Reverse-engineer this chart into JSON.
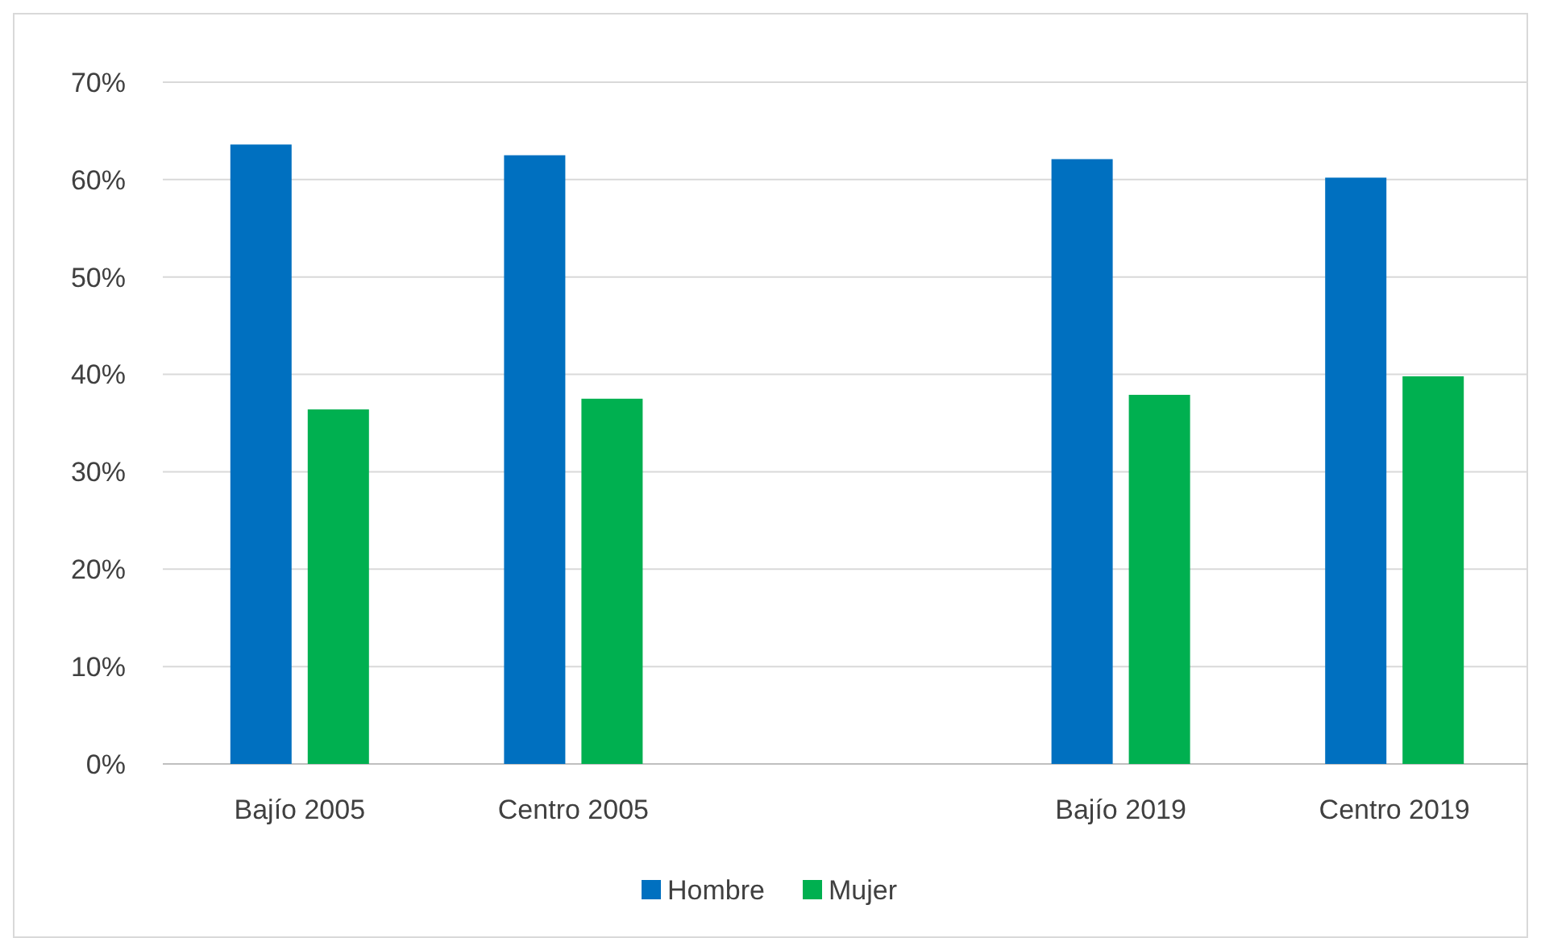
{
  "chart_data": {
    "type": "bar",
    "categories": [
      "Bajío 2005",
      "Centro 2005",
      null,
      "Bajío 2019",
      "Centro 2019"
    ],
    "series": [
      {
        "name": "Hombre",
        "color": "#0070c0",
        "values": [
          63.6,
          62.5,
          null,
          62.1,
          60.2
        ]
      },
      {
        "name": "Mujer",
        "color": "#00b050",
        "values": [
          36.4,
          37.5,
          null,
          37.9,
          39.8
        ]
      }
    ],
    "ylim": [
      0,
      70
    ],
    "yticks": [
      {
        "value": 0,
        "label": "0%"
      },
      {
        "value": 10,
        "label": "10%"
      },
      {
        "value": 20,
        "label": "20%"
      },
      {
        "value": 30,
        "label": "30%"
      },
      {
        "value": 40,
        "label": "40%"
      },
      {
        "value": 50,
        "label": "50%"
      },
      {
        "value": 60,
        "label": "60%"
      },
      {
        "value": 70,
        "label": "70%"
      }
    ],
    "grid": "y",
    "legend": "bottom"
  }
}
